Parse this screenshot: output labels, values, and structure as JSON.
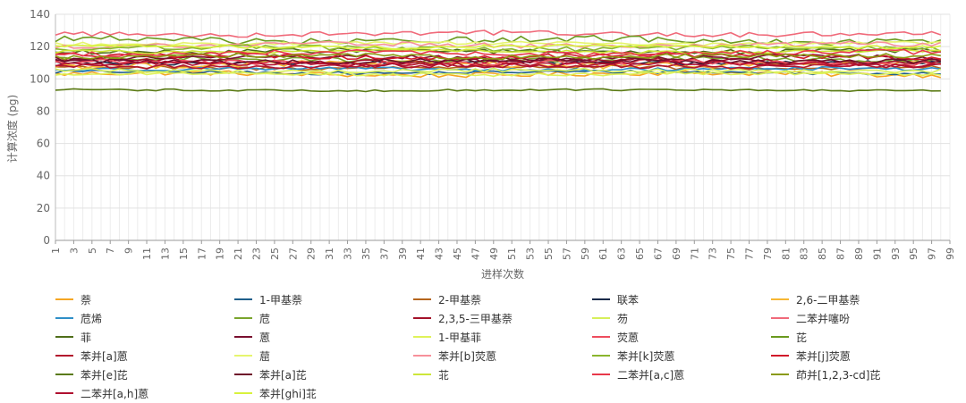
{
  "chart_data": {
    "type": "line",
    "title": "",
    "xlabel": "进样次数",
    "ylabel": "计算浓度 (pg)",
    "ylim": [
      0,
      140
    ],
    "y_ticks": [
      0,
      20,
      40,
      60,
      80,
      100,
      120,
      140
    ],
    "x_range": [
      1,
      99
    ],
    "x_tick_labels": [
      "1",
      "3",
      "5",
      "7",
      "9",
      "11",
      "13",
      "15",
      "17",
      "19",
      "21",
      "23",
      "25",
      "27",
      "29",
      "31",
      "33",
      "35",
      "37",
      "39",
      "41",
      "43",
      "45",
      "47",
      "49",
      "51",
      "53",
      "55",
      "57",
      "59",
      "61",
      "63",
      "65",
      "67",
      "69",
      "71",
      "73",
      "75",
      "77",
      "79",
      "81",
      "83",
      "85",
      "87",
      "89",
      "91",
      "93",
      "95",
      "97",
      "99"
    ],
    "grid": true,
    "legend_position": "bottom",
    "num_points": 98,
    "series": [
      {
        "name": "萘",
        "color": "#f5a623",
        "level": 103,
        "noise": 1.5
      },
      {
        "name": "1-甲基萘",
        "color": "#1f5f8b",
        "level": 104,
        "noise": 1.0
      },
      {
        "name": "2-甲基萘",
        "color": "#b5651d",
        "level": 107,
        "noise": 1.2
      },
      {
        "name": "联苯",
        "color": "#1a2a4a",
        "level": 110,
        "noise": 1.2
      },
      {
        "name": "2,6-二甲基萘",
        "color": "#f7b733",
        "level": 109,
        "noise": 1.8
      },
      {
        "name": "苊烯",
        "color": "#2f8fc8",
        "level": 106,
        "noise": 1.0
      },
      {
        "name": "苊",
        "color": "#7aa52c",
        "level": 112,
        "noise": 1.5
      },
      {
        "name": "2,3,5-三甲基萘",
        "color": "#a4122a",
        "level": 111,
        "noise": 1.5
      },
      {
        "name": "芴",
        "color": "#d6ef5a",
        "level": 105,
        "noise": 1.2
      },
      {
        "name": "二苯并噻吩",
        "color": "#f06a7a",
        "level": 128,
        "noise": 1.5
      },
      {
        "name": "菲",
        "color": "#4f6e1a",
        "level": 117,
        "noise": 1.5
      },
      {
        "name": "蒽",
        "color": "#7a1030",
        "level": 113,
        "noise": 1.5
      },
      {
        "name": "1-甲基菲",
        "color": "#dff25a",
        "level": 103,
        "noise": 1.0
      },
      {
        "name": "荧蒽",
        "color": "#ee4d5e",
        "level": 110,
        "noise": 1.5
      },
      {
        "name": "芘",
        "color": "#6a9a1e",
        "level": 124,
        "noise": 2.0
      },
      {
        "name": "苯并[a]蒽",
        "color": "#b3162e",
        "level": 108,
        "noise": 1.5
      },
      {
        "name": "䓛",
        "color": "#e6f56e",
        "level": 122,
        "noise": 1.0
      },
      {
        "name": "苯并[b]荧蒽",
        "color": "#f7909a",
        "level": 121,
        "noise": 1.5
      },
      {
        "name": "苯并[k]荧蒽",
        "color": "#8ab52e",
        "level": 119,
        "noise": 1.5
      },
      {
        "name": "苯并[j]荧蒽",
        "color": "#d11a2a",
        "level": 114,
        "noise": 1.5
      },
      {
        "name": "苯并[e]芘",
        "color": "#5a7a14",
        "level": 93,
        "noise": 0.6
      },
      {
        "name": "苯并[a]芘",
        "color": "#6e0f2a",
        "level": 111,
        "noise": 1.5
      },
      {
        "name": "苝",
        "color": "#cde63a",
        "level": 117,
        "noise": 1.0
      },
      {
        "name": "二苯并[a,c]蒽",
        "color": "#e8384a",
        "level": 116,
        "noise": 1.5
      },
      {
        "name": "茚并[1,2,3-cd]芘",
        "color": "#8a9a10",
        "level": 114,
        "noise": 1.5
      },
      {
        "name": "二苯并[a,h]蒽",
        "color": "#b01030",
        "level": 109,
        "noise": 1.5
      },
      {
        "name": "苯并[ghi]苝",
        "color": "#d8f23c",
        "level": 120,
        "noise": 1.0
      }
    ]
  }
}
